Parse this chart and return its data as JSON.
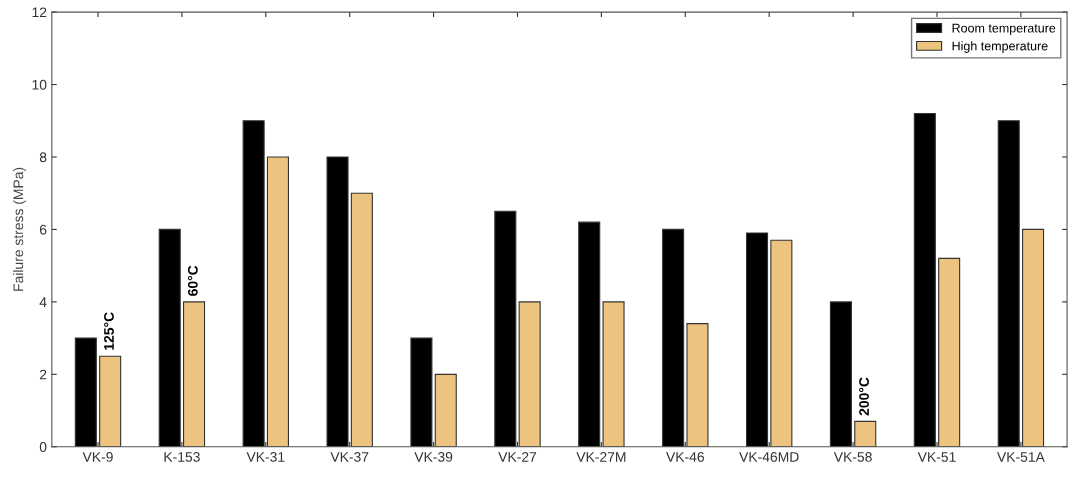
{
  "chart_data": {
    "type": "bar",
    "ylabel": "Failure stress (MPa)",
    "categories": [
      "VK-9",
      "K-153",
      "VK-31",
      "VK-37",
      "VK-39",
      "VK-27",
      "VK-27M",
      "VK-46",
      "VK-46MD",
      "VK-58",
      "VK-51",
      "VK-51A"
    ],
    "series": [
      {
        "name": "Room temperature",
        "color": "#000000",
        "values": [
          3,
          6,
          9,
          8,
          3,
          6.5,
          6.2,
          6,
          5.9,
          4,
          9.2,
          9
        ]
      },
      {
        "name": "High temperature",
        "color": "#ecc47f",
        "values": [
          2.5,
          4,
          8,
          7,
          2,
          4,
          4,
          3.4,
          5.7,
          0.7,
          5.2,
          6
        ]
      }
    ],
    "annotations": [
      {
        "text": "125°C",
        "x": "VK-9",
        "y": 2.5
      },
      {
        "text": "60°C",
        "x": "K-153",
        "y": 4
      },
      {
        "text": "200°C",
        "x": "VK-58",
        "y": 0.7
      }
    ],
    "ylim": [
      0,
      12
    ],
    "yticks": [
      0,
      2,
      4,
      6,
      8,
      10,
      12
    ],
    "grid": false,
    "legend": "top right"
  }
}
